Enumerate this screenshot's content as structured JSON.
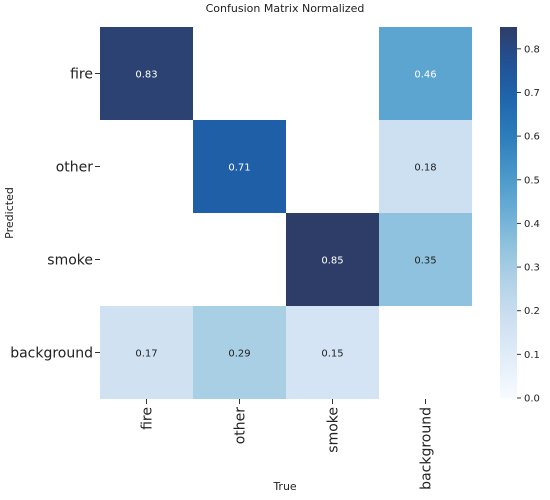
{
  "chart_data": {
    "type": "heatmap",
    "title": "Confusion Matrix Normalized",
    "xlabel": "True",
    "ylabel": "Predicted",
    "x_categories": [
      "fire",
      "other",
      "smoke",
      "background"
    ],
    "y_categories": [
      "fire",
      "other",
      "smoke",
      "background"
    ],
    "matrix": [
      [
        0.83,
        null,
        null,
        0.46
      ],
      [
        null,
        0.71,
        null,
        0.18
      ],
      [
        null,
        null,
        0.85,
        0.35
      ],
      [
        0.17,
        0.29,
        0.15,
        null
      ]
    ],
    "cell_labels": [
      [
        "0.83",
        "",
        "",
        "0.46"
      ],
      [
        "",
        "0.71",
        "",
        "0.18"
      ],
      [
        "",
        "",
        "0.85",
        "0.35"
      ],
      [
        "0.17",
        "0.29",
        "0.15",
        ""
      ]
    ],
    "colorbar": {
      "range": [
        0,
        0.85
      ],
      "ticks": [
        "0.0",
        "0.1",
        "0.2",
        "0.3",
        "0.4",
        "0.5",
        "0.6",
        "0.7",
        "0.8"
      ],
      "colormap": "Blues"
    }
  }
}
